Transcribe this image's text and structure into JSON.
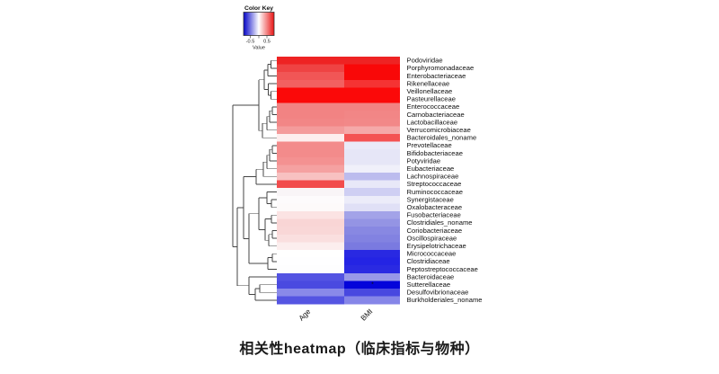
{
  "chart_data": {
    "type": "heatmap",
    "title": "相关性heatmap（临床指标与物种）",
    "legend": {
      "title": "Color Key",
      "axis_label": "Value",
      "tick_labels": [
        "-0.5",
        "0.5"
      ],
      "range": [
        -0.8,
        0.8
      ],
      "colors": {
        "low": "#0505c8",
        "mid": "#ffffff",
        "high": "#e81414"
      }
    },
    "columns": [
      "Age",
      "BMI"
    ],
    "rows": [
      "Podoviridae",
      "Porphyromonadaceae",
      "Enterobacteriaceae",
      "Rikenellaceae",
      "Veillonellaceae",
      "Pasteurellaceae",
      "Enterococcaceae",
      "Carnobacteriaceae",
      "Lactobacillaceae",
      "Verrucomicrobiaceae",
      "Bacteroidales_noname",
      "Prevotellaceae",
      "Bifidobacteriaceae",
      "Potyviridae",
      "Eubacteriaceae",
      "Lachnospiraceae",
      "Streptococcaceae",
      "Ruminococcaceae",
      "Synergistaceae",
      "Oxalobacteraceae",
      "Fusobacteriaceae",
      "Clostridiales_noname",
      "Coriobacteriaceae",
      "Oscillospiraceae",
      "Erysipelotrichaceae",
      "Micrococcaceae",
      "Clostridiaceae",
      "Peptostreptococcaceae",
      "Bacteroidaceae",
      "Sutterellaceae",
      "Desulfovibrionaceae",
      "Burkholderiales_noname"
    ],
    "series": [
      {
        "name": "Age",
        "values": [
          0.65,
          0.55,
          0.5,
          0.45,
          0.75,
          0.75,
          0.35,
          0.35,
          0.34,
          0.28,
          0.04,
          0.34,
          0.34,
          0.32,
          0.27,
          0.17,
          0.52,
          0.02,
          0.01,
          0.01,
          0.08,
          0.12,
          0.12,
          0.1,
          0.05,
          0.0,
          0.0,
          0.0,
          -0.52,
          -0.56,
          -0.36,
          -0.52
        ]
      },
      {
        "name": "BMI",
        "values": [
          0.65,
          0.76,
          0.76,
          0.6,
          0.75,
          0.75,
          0.35,
          0.34,
          0.33,
          0.25,
          0.51,
          -0.06,
          -0.08,
          -0.08,
          -0.04,
          -0.21,
          -0.07,
          -0.15,
          -0.06,
          -0.1,
          -0.28,
          -0.33,
          -0.37,
          -0.39,
          -0.42,
          -0.66,
          -0.68,
          -0.66,
          -0.32,
          -0.78,
          -0.57,
          -0.38
        ]
      }
    ],
    "cell_colors": {
      "Age": [
        "#ee2323",
        "#ef4343",
        "#f15656",
        "#f26161",
        "#fb0909",
        "#fb0909",
        "#f28383",
        "#f28383",
        "#f28686",
        "#f49b9b",
        "#fdeeee",
        "#f38b8b",
        "#f38b8b",
        "#f49191",
        "#f5a1a1",
        "#f8c1c1",
        "#f24c4c",
        "#f9f5f7",
        "#fdfbfc",
        "#fdfafa",
        "#fbe3e3",
        "#f9d5d5",
        "#f9d7d7",
        "#fadfdf",
        "#fceeee",
        "#ffffff",
        "#fefeff",
        "#fdfdfe",
        "#5353e2",
        "#4a4ae0",
        "#8a8ae9",
        "#5555e2"
      ],
      "BMI": [
        "#ee2323",
        "#f90808",
        "#f90808",
        "#f53333",
        "#fb0909",
        "#fb0909",
        "#f28383",
        "#f28686",
        "#f28888",
        "#f5a9a9",
        "#f45353",
        "#eaeaf8",
        "#e6e6f7",
        "#e6e6f7",
        "#f0f0fa",
        "#bcbcee",
        "#e8e8f8",
        "#cfcff3",
        "#ececf9",
        "#e0e0f6",
        "#a3a3e8",
        "#9494e4",
        "#8888e2",
        "#8282e1",
        "#7a7ae0",
        "#2929e2",
        "#2424e4",
        "#2a2ae2",
        "#9898e8",
        "#0404da",
        "#4848e0",
        "#8686e8"
      ]
    },
    "annotations": [
      {
        "row": "Sutterellaceae",
        "column": "BMI",
        "marker": "*"
      }
    ]
  },
  "dendrogram": {
    "orientation": "left",
    "segments": [
      [
        301.5,
        67.3,
        301.5,
        75.9
      ],
      [
        301.5,
        67.3,
        308,
        67.3
      ],
      [
        301.5,
        75.9,
        308,
        75.9
      ],
      [
        298,
        71.6,
        298,
        84.5
      ],
      [
        298,
        71.6,
        301.5,
        71.6
      ],
      [
        298,
        84.5,
        308,
        84.5
      ],
      [
        301.5,
        101.7,
        301.5,
        110.3
      ],
      [
        301.5,
        101.7,
        308,
        101.7
      ],
      [
        301.5,
        110.3,
        308,
        110.3
      ],
      [
        298.5,
        93.1,
        298.5,
        106
      ],
      [
        298.5,
        93.1,
        308,
        93.1
      ],
      [
        298.5,
        106,
        301.5,
        106
      ],
      [
        294,
        78.05,
        294,
        99.55
      ],
      [
        294,
        78.05,
        298,
        78.05
      ],
      [
        294,
        99.55,
        298.5,
        99.55
      ],
      [
        303,
        118.9,
        303,
        127.5
      ],
      [
        303,
        118.9,
        308,
        118.9
      ],
      [
        303,
        127.5,
        308,
        127.5
      ],
      [
        300,
        123.2,
        300,
        136.1
      ],
      [
        300,
        123.2,
        303,
        123.2
      ],
      [
        300,
        136.1,
        308,
        136.1
      ],
      [
        297,
        129.65,
        297,
        144.7
      ],
      [
        297,
        129.65,
        300,
        129.65
      ],
      [
        297,
        144.7,
        308,
        144.7
      ],
      [
        292,
        137.2,
        292,
        153.3
      ],
      [
        292,
        137.2,
        297,
        137.2
      ],
      [
        292,
        153.3,
        308,
        153.3
      ],
      [
        288,
        88.8,
        288,
        145.25
      ],
      [
        288,
        88.8,
        294,
        88.8
      ],
      [
        288,
        145.25,
        292,
        145.25
      ],
      [
        303,
        161.9,
        303,
        170.5
      ],
      [
        303,
        161.9,
        308,
        161.9
      ],
      [
        303,
        170.5,
        308,
        170.5
      ],
      [
        300,
        166.2,
        300,
        179.1
      ],
      [
        300,
        166.2,
        303,
        166.2
      ],
      [
        300,
        179.1,
        308,
        179.1
      ],
      [
        297,
        172.65,
        297,
        187.7
      ],
      [
        297,
        172.65,
        300,
        172.65
      ],
      [
        297,
        187.7,
        308,
        187.7
      ],
      [
        293,
        180.2,
        293,
        196.3
      ],
      [
        293,
        180.2,
        297,
        180.2
      ],
      [
        293,
        196.3,
        308,
        196.3
      ],
      [
        285,
        188.25,
        285,
        204.9
      ],
      [
        285,
        188.25,
        293,
        188.25
      ],
      [
        285,
        204.9,
        308,
        204.9
      ],
      [
        302,
        222.1,
        302,
        230.7
      ],
      [
        302,
        222.1,
        308,
        222.1
      ],
      [
        302,
        230.7,
        308,
        230.7
      ],
      [
        297,
        213.5,
        297,
        226.4
      ],
      [
        297,
        213.5,
        308,
        213.5
      ],
      [
        297,
        226.4,
        302,
        226.4
      ],
      [
        302,
        239.3,
        302,
        247.9
      ],
      [
        302,
        239.3,
        308,
        239.3
      ],
      [
        302,
        247.9,
        308,
        247.9
      ],
      [
        303,
        256.5,
        303,
        265.1
      ],
      [
        303,
        256.5,
        308,
        256.5
      ],
      [
        303,
        265.1,
        308,
        265.1
      ],
      [
        299,
        260.8,
        299,
        273.7
      ],
      [
        299,
        260.8,
        303,
        260.8
      ],
      [
        299,
        273.7,
        308,
        273.7
      ],
      [
        295,
        243.6,
        295,
        267.25
      ],
      [
        295,
        243.6,
        302,
        243.6
      ],
      [
        295,
        267.25,
        299,
        267.25
      ],
      [
        288,
        219.95,
        288,
        255.4
      ],
      [
        288,
        219.95,
        297,
        219.95
      ],
      [
        288,
        255.4,
        295,
        255.4
      ],
      [
        303,
        282.3,
        303,
        290.9
      ],
      [
        303,
        282.3,
        308,
        282.3
      ],
      [
        303,
        290.9,
        308,
        290.9
      ],
      [
        298,
        286.6,
        298,
        299.5
      ],
      [
        298,
        286.6,
        303,
        286.6
      ],
      [
        298,
        299.5,
        308,
        299.5
      ],
      [
        277,
        237.7,
        277,
        293.05
      ],
      [
        277,
        237.7,
        288,
        237.7
      ],
      [
        277,
        293.05,
        298,
        293.05
      ],
      [
        271,
        196.6,
        271,
        265.4
      ],
      [
        271,
        196.6,
        285,
        196.6
      ],
      [
        271,
        265.4,
        277,
        265.4
      ],
      [
        289,
        316.7,
        289,
        325.3
      ],
      [
        289,
        316.7,
        308,
        316.7
      ],
      [
        289,
        325.3,
        308,
        325.3
      ],
      [
        284,
        321,
        284,
        333.9
      ],
      [
        284,
        321,
        289,
        321
      ],
      [
        284,
        333.9,
        308,
        333.9
      ],
      [
        277,
        308.1,
        277,
        327.45
      ],
      [
        277,
        308.1,
        308,
        308.1
      ],
      [
        277,
        327.45,
        284,
        327.45
      ],
      [
        264,
        231,
        264,
        317.8
      ],
      [
        264,
        231,
        271,
        231
      ],
      [
        264,
        317.8,
        277,
        317.8
      ],
      [
        259,
        117,
        259,
        274.4
      ],
      [
        259,
        117,
        288,
        117
      ],
      [
        259,
        274.4,
        264,
        274.4
      ]
    ]
  }
}
